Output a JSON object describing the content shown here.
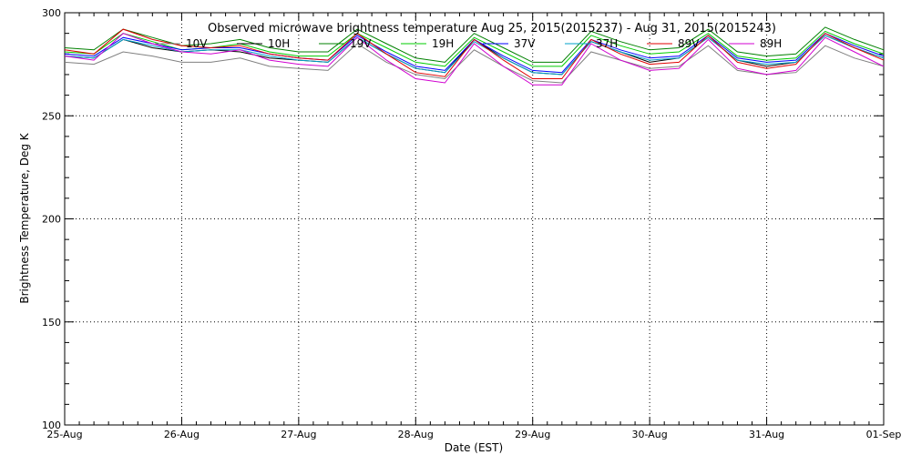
{
  "chart_data": {
    "type": "line",
    "title": "Observed microwave brightness temperature Aug 25, 2015(2015237) - Aug 31, 2015(2015243)",
    "xlabel": "Date (EST)",
    "ylabel": "Brightness Temperature, Deg K",
    "xlim": [
      "2015-08-25",
      "2015-09-01"
    ],
    "ylim": [
      100,
      300
    ],
    "x_ticks": [
      "25-Aug",
      "26-Aug",
      "27-Aug",
      "28-Aug",
      "29-Aug",
      "30-Aug",
      "31-Aug",
      "01-Sep"
    ],
    "y_ticks": [
      "100",
      "150",
      "200",
      "250",
      "300"
    ],
    "grid": "dotted",
    "legend_position": "top-inside",
    "x_days": [
      0,
      0.25,
      0.5,
      0.75,
      1.0,
      1.25,
      1.5,
      1.75,
      2.0,
      2.25,
      2.5,
      2.75,
      3.0,
      3.25,
      3.5,
      3.75,
      4.0,
      4.25,
      4.5,
      4.75,
      5.0,
      5.25,
      5.5,
      5.75,
      6.0,
      6.25,
      6.5,
      6.75,
      7.0
    ],
    "series": [
      {
        "name": "10V",
        "color": "#808080",
        "values": [
          276,
          275,
          281,
          279,
          276,
          276,
          278,
          274,
          273,
          272,
          285,
          276,
          270,
          268,
          282,
          274,
          267,
          266,
          281,
          277,
          273,
          274,
          284,
          272,
          270,
          271,
          284,
          278,
          274
        ]
      },
      {
        "name": "10H",
        "color": "#000000",
        "values": [
          279,
          278,
          287,
          283,
          281,
          282,
          281,
          278,
          277,
          276,
          288,
          280,
          273,
          271,
          287,
          278,
          271,
          270,
          286,
          281,
          276,
          278,
          288,
          277,
          274,
          276,
          289,
          283,
          278
        ]
      },
      {
        "name": "19V",
        "color": "#008000",
        "values": [
          283,
          282,
          292,
          288,
          284,
          285,
          287,
          283,
          281,
          281,
          292,
          285,
          278,
          276,
          290,
          283,
          276,
          276,
          291,
          286,
          282,
          283,
          292,
          281,
          279,
          280,
          293,
          287,
          282
        ]
      },
      {
        "name": "19H",
        "color": "#00cc00",
        "values": [
          281,
          280,
          290,
          286,
          282,
          283,
          285,
          281,
          279,
          279,
          290,
          283,
          276,
          274,
          288,
          281,
          274,
          274,
          289,
          284,
          280,
          281,
          290,
          279,
          277,
          278,
          291,
          285,
          280
        ]
      },
      {
        "name": "37V",
        "color": "#0000ff",
        "values": [
          280,
          279,
          288,
          285,
          282,
          283,
          283,
          280,
          278,
          277,
          289,
          281,
          274,
          272,
          287,
          279,
          272,
          271,
          287,
          282,
          278,
          279,
          289,
          278,
          276,
          277,
          290,
          284,
          279
        ]
      },
      {
        "name": "37H",
        "color": "#00a0c8",
        "values": [
          279,
          278,
          287,
          284,
          281,
          282,
          282,
          279,
          277,
          276,
          288,
          280,
          273,
          271,
          286,
          278,
          271,
          270,
          286,
          281,
          277,
          278,
          288,
          277,
          275,
          276,
          289,
          283,
          278
        ]
      },
      {
        "name": "89V",
        "color": "#e00000",
        "values": [
          282,
          280,
          292,
          287,
          284,
          283,
          284,
          280,
          278,
          277,
          290,
          280,
          271,
          269,
          287,
          277,
          268,
          268,
          287,
          280,
          275,
          276,
          289,
          276,
          273,
          275,
          290,
          283,
          277
        ]
      },
      {
        "name": "89H",
        "color": "#d000d0",
        "values": [
          279,
          277,
          290,
          285,
          281,
          280,
          282,
          277,
          275,
          274,
          288,
          277,
          268,
          266,
          285,
          274,
          265,
          265,
          285,
          277,
          272,
          273,
          287,
          273,
          270,
          272,
          288,
          281,
          274
        ]
      }
    ]
  }
}
